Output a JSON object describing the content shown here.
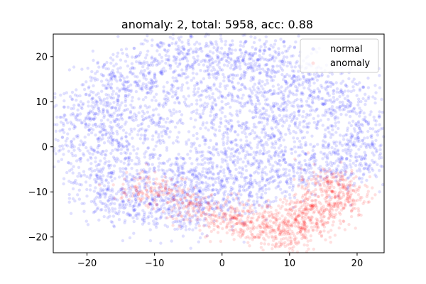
{
  "chart_data": {
    "type": "scatter",
    "title": "anomaly: 2, total: 5958, acc: 0.88",
    "xlabel": "",
    "ylabel": "",
    "xlim": [
      -25,
      24
    ],
    "ylim": [
      -23.5,
      25
    ],
    "xticks": [
      -20,
      -10,
      0,
      10,
      20
    ],
    "yticks": [
      -20,
      -10,
      0,
      10,
      20
    ],
    "grid": false,
    "legend_position": "top-right",
    "series": [
      {
        "name": "normal",
        "color": "#0000ff",
        "alpha": 0.12,
        "shape": "irregular disc covering x -22..22, y -21..21",
        "values": [
          {
            "x": -21,
            "y": 4
          },
          {
            "x": -19,
            "y": 8
          },
          {
            "x": -17,
            "y": 13
          },
          {
            "x": -14,
            "y": 14
          },
          {
            "x": -10,
            "y": 18
          },
          {
            "x": -6,
            "y": 20
          },
          {
            "x": -2,
            "y": 19
          },
          {
            "x": 2,
            "y": 20
          },
          {
            "x": 6,
            "y": 18
          },
          {
            "x": 10,
            "y": 17
          },
          {
            "x": 14,
            "y": 13
          },
          {
            "x": 18,
            "y": 10
          },
          {
            "x": 20,
            "y": 5
          },
          {
            "x": 21,
            "y": 0
          },
          {
            "x": 19,
            "y": -4
          },
          {
            "x": 15,
            "y": -3
          },
          {
            "x": 10,
            "y": -6
          },
          {
            "x": 5,
            "y": -8
          },
          {
            "x": 0,
            "y": -10
          },
          {
            "x": -4,
            "y": -13
          },
          {
            "x": -8,
            "y": -14
          },
          {
            "x": -12,
            "y": -13
          },
          {
            "x": -15,
            "y": -11
          },
          {
            "x": -18,
            "y": -8
          },
          {
            "x": -19,
            "y": -3
          },
          {
            "x": -10,
            "y": 5
          },
          {
            "x": -5,
            "y": 10
          },
          {
            "x": 0,
            "y": 5
          },
          {
            "x": 5,
            "y": 0
          },
          {
            "x": 8,
            "y": 8
          },
          {
            "x": -8,
            "y": -5
          },
          {
            "x": 0,
            "y": -3
          },
          {
            "x": 12,
            "y": 4
          },
          {
            "x": -14,
            "y": 2
          },
          {
            "x": 4,
            "y": 12
          },
          {
            "x": -3,
            "y": -8
          }
        ]
      },
      {
        "name": "anomaly",
        "color": "#ff0000",
        "alpha": 0.12,
        "shape": "dense cluster in lower right around x 5..19, y -21..-6; sparse elsewhere",
        "values": [
          {
            "x": 8,
            "y": -19
          },
          {
            "x": 10,
            "y": -20
          },
          {
            "x": 12,
            "y": -18
          },
          {
            "x": 14,
            "y": -16
          },
          {
            "x": 16,
            "y": -14
          },
          {
            "x": 18,
            "y": -12
          },
          {
            "x": 17,
            "y": -9
          },
          {
            "x": 15,
            "y": -7
          },
          {
            "x": 13,
            "y": -12
          },
          {
            "x": 11,
            "y": -15
          },
          {
            "x": 9,
            "y": -17
          },
          {
            "x": 6,
            "y": -18
          },
          {
            "x": 4,
            "y": -17
          },
          {
            "x": 2,
            "y": -16
          },
          {
            "x": 0,
            "y": -17
          },
          {
            "x": -3,
            "y": -14
          },
          {
            "x": -6,
            "y": -12
          },
          {
            "x": -9,
            "y": -10
          },
          {
            "x": -12,
            "y": -9
          },
          {
            "x": 19,
            "y": -10
          }
        ]
      }
    ]
  }
}
